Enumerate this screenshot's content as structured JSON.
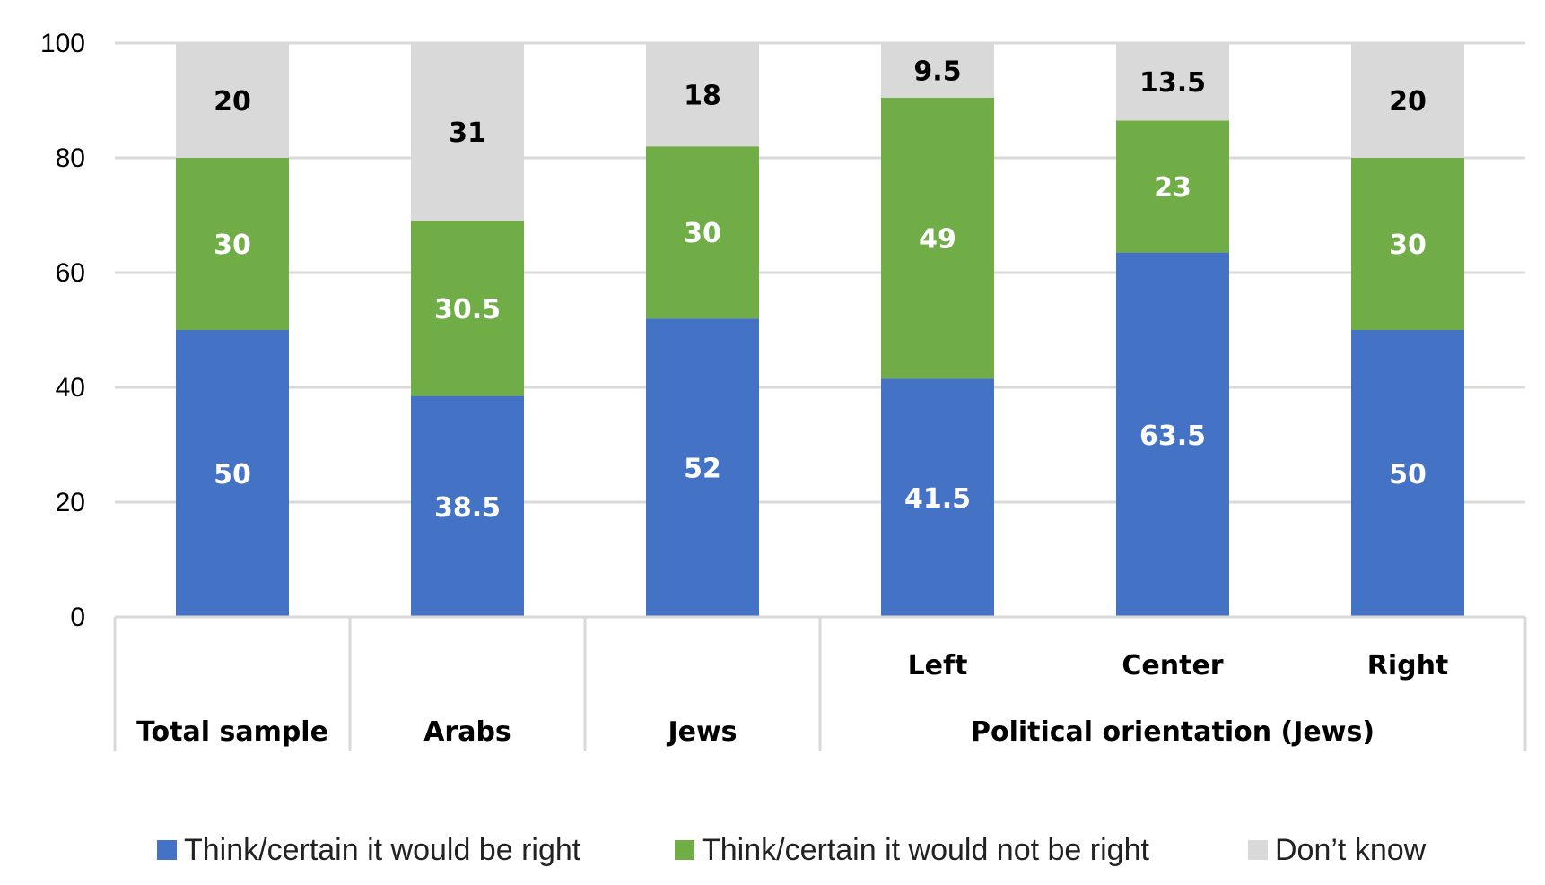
{
  "chart_data": {
    "type": "bar",
    "stacked": true,
    "title": "",
    "xlabel": "",
    "ylabel": "",
    "ylim": [
      0,
      100
    ],
    "yticks": [
      0,
      20,
      40,
      60,
      80,
      100
    ],
    "categories": [
      "Total sample",
      "Arabs",
      "Jews",
      "Left",
      "Center",
      "Right"
    ],
    "group_label": "Political orientation (Jews)",
    "grouped_categories": [
      "Left",
      "Center",
      "Right"
    ],
    "series": [
      {
        "name": "Think/certain it would be right",
        "color": "#4472C4",
        "label_color": "#ffffff",
        "values": [
          50,
          38.5,
          52,
          41.5,
          63.5,
          50
        ]
      },
      {
        "name": "Think/certain it would not be right",
        "color": "#70AD47",
        "label_color": "#ffffff",
        "values": [
          30,
          30.5,
          30,
          49,
          23,
          30
        ]
      },
      {
        "name": "Don’t know",
        "color": "#D9D9D9",
        "label_color": "#000000",
        "values": [
          20,
          31,
          18,
          9.5,
          13.5,
          20
        ]
      }
    ],
    "legend_position": "bottom",
    "grid": true
  }
}
